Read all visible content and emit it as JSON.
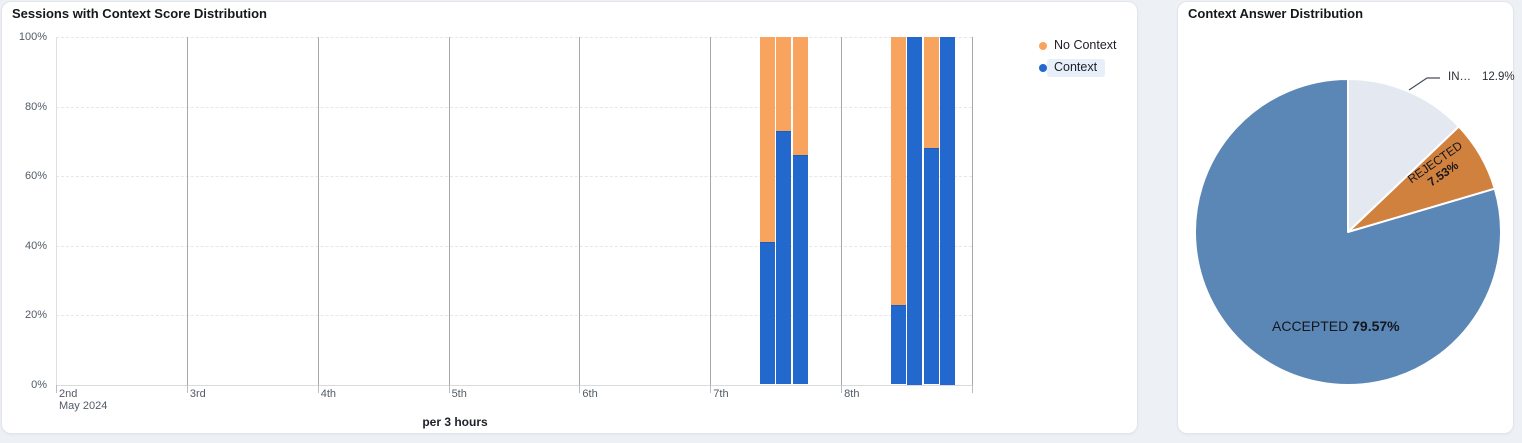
{
  "page": {
    "background": "#edf0f4"
  },
  "left_panel": {
    "title": "Sessions with Context Score Distribution",
    "x_axis_label": "per 3 hours",
    "legend": [
      {
        "label": "No Context",
        "color": "#f8a45f",
        "highlighted": false
      },
      {
        "label": "Context",
        "color": "#2368cd",
        "highlighted": true
      }
    ],
    "chart_data": {
      "type": "bar",
      "stacked": true,
      "unit": "percent",
      "title": "Sessions with Context Score Distribution",
      "xlabel": "per 3 hours",
      "ylim": [
        0,
        100
      ],
      "grid": {
        "horizontal": "dashed",
        "vertical": "solid-per-day"
      },
      "y_ticks": [
        "0%",
        "20%",
        "40%",
        "60%",
        "80%",
        "100%"
      ],
      "x_tick_labels": [
        "2nd",
        "3rd",
        "4th",
        "5th",
        "6th",
        "7th",
        "8th"
      ],
      "x_tick_sub_label": "May 2024",
      "days_shown": 7,
      "bucket_hours": 3,
      "series_names": [
        "Context",
        "No Context"
      ],
      "colors": {
        "context": "#2368cd",
        "no_context": "#f8a45f"
      },
      "bars": [
        {
          "date": "May 7 2024",
          "day_index": 5,
          "hour": 9,
          "context": 41,
          "no_context": 59
        },
        {
          "date": "May 7 2024",
          "day_index": 5,
          "hour": 12,
          "context": 73,
          "no_context": 27
        },
        {
          "date": "May 7 2024",
          "day_index": 5,
          "hour": 15,
          "context": 66,
          "no_context": 34
        },
        {
          "date": "May 8 2024",
          "day_index": 6,
          "hour": 9,
          "context": 23,
          "no_context": 77
        },
        {
          "date": "May 8 2024",
          "day_index": 6,
          "hour": 12,
          "context": 100,
          "no_context": 0
        },
        {
          "date": "May 8 2024",
          "day_index": 6,
          "hour": 15,
          "context": 68,
          "no_context": 32
        },
        {
          "date": "May 8 2024",
          "day_index": 6,
          "hour": 18,
          "context": 100,
          "no_context": 0
        }
      ]
    }
  },
  "right_panel": {
    "title": "Context Answer Distribution",
    "chart_data": {
      "type": "pie",
      "title": "Context Answer Distribution",
      "start_angle_deg": 0,
      "direction": "clockwise",
      "slices": [
        {
          "label": "IN…",
          "pct_label": "12.9%",
          "value": 12.9,
          "color": "#e4e9f1",
          "label_style": "callout"
        },
        {
          "label": "REJECTED",
          "pct_label": "7.53%",
          "value": 7.53,
          "color": "#d1813e",
          "label_style": "rotated-inside"
        },
        {
          "label": "ACCEPTED",
          "pct_label": "79.57%",
          "value": 79.57,
          "color": "#5b87b7",
          "label_style": "inside"
        }
      ]
    }
  }
}
